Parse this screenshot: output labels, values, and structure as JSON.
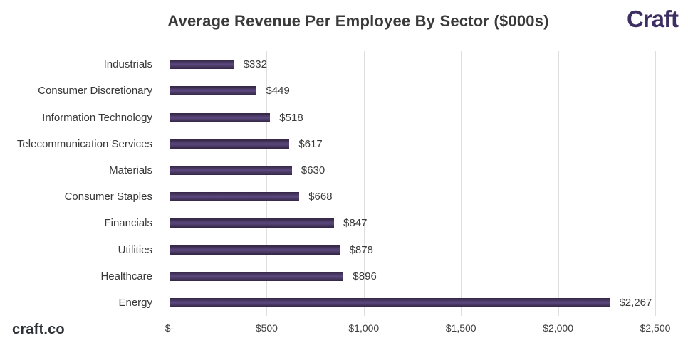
{
  "page": {
    "brand_logo": "Craft",
    "footer_brand": "craft.co"
  },
  "chart_data": {
    "type": "bar",
    "orientation": "horizontal",
    "title": "Average Revenue Per Employee By Sector ($000s)",
    "categories": [
      "Industrials",
      "Consumer Discretionary",
      "Information Technology",
      "Telecommunication Services",
      "Materials",
      "Consumer Staples",
      "Financials",
      "Utilities",
      "Healthcare",
      "Energy"
    ],
    "values": [
      332,
      449,
      518,
      617,
      630,
      668,
      847,
      878,
      896,
      2267
    ],
    "value_labels": [
      "$332",
      "$449",
      "$518",
      "$617",
      "$630",
      "$668",
      "$847",
      "$878",
      "$896",
      "$2,267"
    ],
    "x_ticks": [
      "$-",
      "$500",
      "$1,000",
      "$1,500",
      "$2,000",
      "$2,500"
    ],
    "x_tick_values": [
      0,
      500,
      1000,
      1500,
      2000,
      2500
    ],
    "xlim": [
      0,
      2500
    ],
    "grid": "vertical-only",
    "legend": "none",
    "bar_color": "#46365c",
    "gridline_color": "#dedede",
    "brand_color": "#3e2f63"
  }
}
